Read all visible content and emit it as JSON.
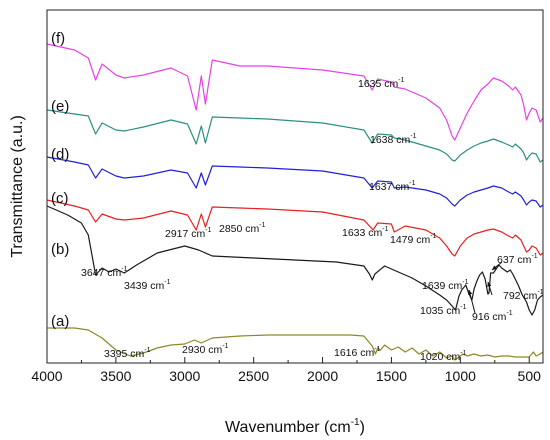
{
  "chart_data": {
    "type": "line",
    "title": "",
    "xlabel": "Wavenumber (cm",
    "xlabel_sup": "-1",
    "xlabel_close": ")",
    "ylabel": "Transmittance (a.u.)",
    "xlim": [
      4000,
      400
    ],
    "x_reversed": true,
    "x_ticks": [
      4000,
      3500,
      3000,
      2500,
      2000,
      1500,
      1000,
      500
    ],
    "grid": false,
    "legend": "none",
    "series": [
      {
        "label": "(f)",
        "color": "#e642e6",
        "x": [
          4000,
          3800,
          3700,
          3647,
          3600,
          3500,
          3439,
          3300,
          3100,
          2980,
          2917,
          2880,
          2850,
          2800,
          2600,
          2400,
          2000,
          1700,
          1640,
          1600,
          1500,
          1479,
          1400,
          1250,
          1150,
          1100,
          1060,
          1040,
          1000,
          950,
          900,
          850,
          800,
          760,
          700,
          650,
          620,
          600,
          560,
          540,
          520,
          500,
          480,
          450,
          420,
          400
        ],
        "y": [
          34,
          40,
          48,
          70,
          54,
          65,
          68,
          65,
          58,
          66,
          100,
          66,
          94,
          50,
          56,
          56,
          60,
          66,
          80,
          69,
          72,
          77,
          79,
          88,
          98,
          110,
          126,
          130,
          118,
          103,
          91,
          80,
          74,
          68,
          71,
          76,
          80,
          77,
          85,
          95,
          110,
          103,
          98,
          100,
          112,
          108
        ]
      },
      {
        "label": "(e)",
        "color": "#2b8f84",
        "x": [
          4000,
          3800,
          3700,
          3647,
          3600,
          3500,
          3439,
          3300,
          3100,
          2980,
          2917,
          2880,
          2850,
          2800,
          2600,
          2400,
          2000,
          1700,
          1640,
          1600,
          1500,
          1479,
          1400,
          1250,
          1150,
          1100,
          1060,
          1040,
          1000,
          950,
          900,
          850,
          800,
          760,
          700,
          650,
          620,
          600,
          560,
          540,
          520,
          500,
          480,
          450,
          420,
          400
        ],
        "y": [
          100,
          104,
          106,
          124,
          113,
          120,
          121,
          117,
          110,
          114,
          134,
          116,
          133,
          107,
          108,
          109,
          113,
          120,
          133,
          124,
          125,
          128,
          130,
          136,
          140,
          144,
          150,
          151,
          145,
          140,
          136,
          133,
          131,
          129,
          132,
          135,
          137,
          134,
          139,
          143,
          150,
          146,
          143,
          144,
          152,
          150
        ]
      },
      {
        "label": "(d)",
        "color": "#2020d8",
        "x": [
          4000,
          3800,
          3700,
          3647,
          3600,
          3500,
          3439,
          3300,
          3100,
          2980,
          2917,
          2880,
          2850,
          2800,
          2600,
          2400,
          2000,
          1700,
          1640,
          1600,
          1500,
          1479,
          1400,
          1250,
          1150,
          1100,
          1060,
          1040,
          1000,
          950,
          900,
          850,
          800,
          760,
          700,
          650,
          620,
          600,
          560,
          540,
          520,
          500,
          480,
          450,
          420,
          400
        ],
        "y": [
          147,
          152,
          155,
          168,
          159,
          166,
          168,
          166,
          160,
          163,
          178,
          163,
          175,
          156,
          157,
          158,
          161,
          168,
          178,
          171,
          172,
          178,
          177,
          180,
          184,
          188,
          194,
          196,
          190,
          185,
          182,
          180,
          178,
          176,
          178,
          182,
          184,
          182,
          186,
          190,
          195,
          192,
          190,
          191,
          197,
          195
        ]
      },
      {
        "label": "(c)",
        "color": "#e82020",
        "x": [
          4000,
          3800,
          3700,
          3647,
          3600,
          3500,
          3439,
          3300,
          3100,
          2980,
          2917,
          2880,
          2850,
          2800,
          2600,
          2400,
          2000,
          1700,
          1640,
          1633,
          1600,
          1500,
          1479,
          1400,
          1250,
          1150,
          1100,
          1060,
          1040,
          1000,
          950,
          900,
          850,
          800,
          760,
          700,
          650,
          620,
          600,
          560,
          540,
          520,
          500,
          480,
          450,
          420,
          400
        ],
        "y": [
          190,
          196,
          200,
          212,
          204,
          209,
          210,
          208,
          201,
          205,
          220,
          204,
          217,
          197,
          198,
          199,
          202,
          210,
          219,
          220,
          213,
          214,
          222,
          216,
          220,
          228,
          236,
          244,
          246,
          236,
          228,
          224,
          222,
          220,
          219,
          222,
          226,
          228,
          225,
          230,
          236,
          242,
          240,
          236,
          238,
          245,
          243
        ]
      },
      {
        "label": "(b)",
        "color": "#1a1a1a",
        "x": [
          4000,
          3850,
          3750,
          3700,
          3647,
          3600,
          3550,
          3500,
          3439,
          3350,
          3200,
          3000,
          2900,
          2800,
          2500,
          2200,
          1900,
          1700,
          1660,
          1639,
          1620,
          1550,
          1450,
          1350,
          1250,
          1150,
          1100,
          1060,
          1035,
          1010,
          990,
          960,
          940,
          916,
          900,
          880,
          860,
          840,
          820,
          800,
          792,
          780,
          760,
          720,
          700,
          660,
          637,
          620,
          580,
          550,
          520,
          500,
          480,
          460,
          440,
          420,
          400
        ],
        "y": [
          196,
          205,
          213,
          225,
          265,
          258,
          262,
          259,
          263,
          255,
          243,
          236,
          240,
          246,
          248,
          250,
          252,
          256,
          264,
          270,
          264,
          256,
          262,
          268,
          276,
          285,
          290,
          296,
          300,
          286,
          280,
          275,
          283,
          290,
          279,
          271,
          265,
          262,
          269,
          284,
          283,
          263,
          263,
          255,
          258,
          262,
          260,
          264,
          275,
          285,
          292,
          300,
          305,
          300,
          290,
          287,
          285
        ]
      },
      {
        "label": "(a)",
        "color": "#8b8a28",
        "x": [
          4000,
          3900,
          3800,
          3700,
          3600,
          3500,
          3395,
          3300,
          3200,
          3100,
          3000,
          2930,
          2880,
          2800,
          2600,
          2400,
          2200,
          2000,
          1800,
          1700,
          1640,
          1616,
          1600,
          1580,
          1550,
          1500,
          1450,
          1400,
          1350,
          1300,
          1250,
          1200,
          1150,
          1100,
          1060,
          1040,
          1020,
          1000,
          980,
          950,
          900,
          850,
          800,
          750,
          700,
          650,
          600,
          550,
          500,
          470,
          450,
          420,
          400
        ],
        "y": [
          318,
          318,
          318,
          320,
          328,
          340,
          346,
          343,
          338,
          335,
          334,
          330,
          333,
          328,
          326,
          325,
          325,
          325,
          325,
          326,
          336,
          344,
          338,
          340,
          335,
          340,
          337,
          342,
          338,
          344,
          340,
          346,
          342,
          348,
          346,
          350,
          348,
          346,
          344,
          346,
          344,
          346,
          345,
          347,
          346,
          346,
          347,
          347,
          347,
          342,
          346,
          344,
          342
        ]
      }
    ],
    "annotations": [
      {
        "text": "1635 cm",
        "sup": "-1"
      },
      {
        "text": "1638 cm",
        "sup": "-1"
      },
      {
        "text": "1637 cm",
        "sup": "-1"
      },
      {
        "text": "2917 cm",
        "sup": "-1"
      },
      {
        "text": "2850 cm",
        "sup": "-1"
      },
      {
        "text": "1633 cm",
        "sup": "-1"
      },
      {
        "text": "1479 cm",
        "sup": "-1"
      },
      {
        "text": "3647 cm",
        "sup": "-1"
      },
      {
        "text": "3439 cm",
        "sup": "-1"
      },
      {
        "text": "1639 cm",
        "sup": "-1"
      },
      {
        "text": "1035 cm",
        "sup": "-1"
      },
      {
        "text": "916 cm",
        "sup": "-1"
      },
      {
        "text": "792 cm",
        "sup": "-1"
      },
      {
        "text": "637 cm",
        "sup": "-1"
      },
      {
        "text": "3395 cm",
        "sup": "-1"
      },
      {
        "text": "2930 cm",
        "sup": "-1"
      },
      {
        "text": "1616 cm",
        "sup": "-1"
      },
      {
        "text": "1020 cm",
        "sup": "-1"
      }
    ]
  }
}
